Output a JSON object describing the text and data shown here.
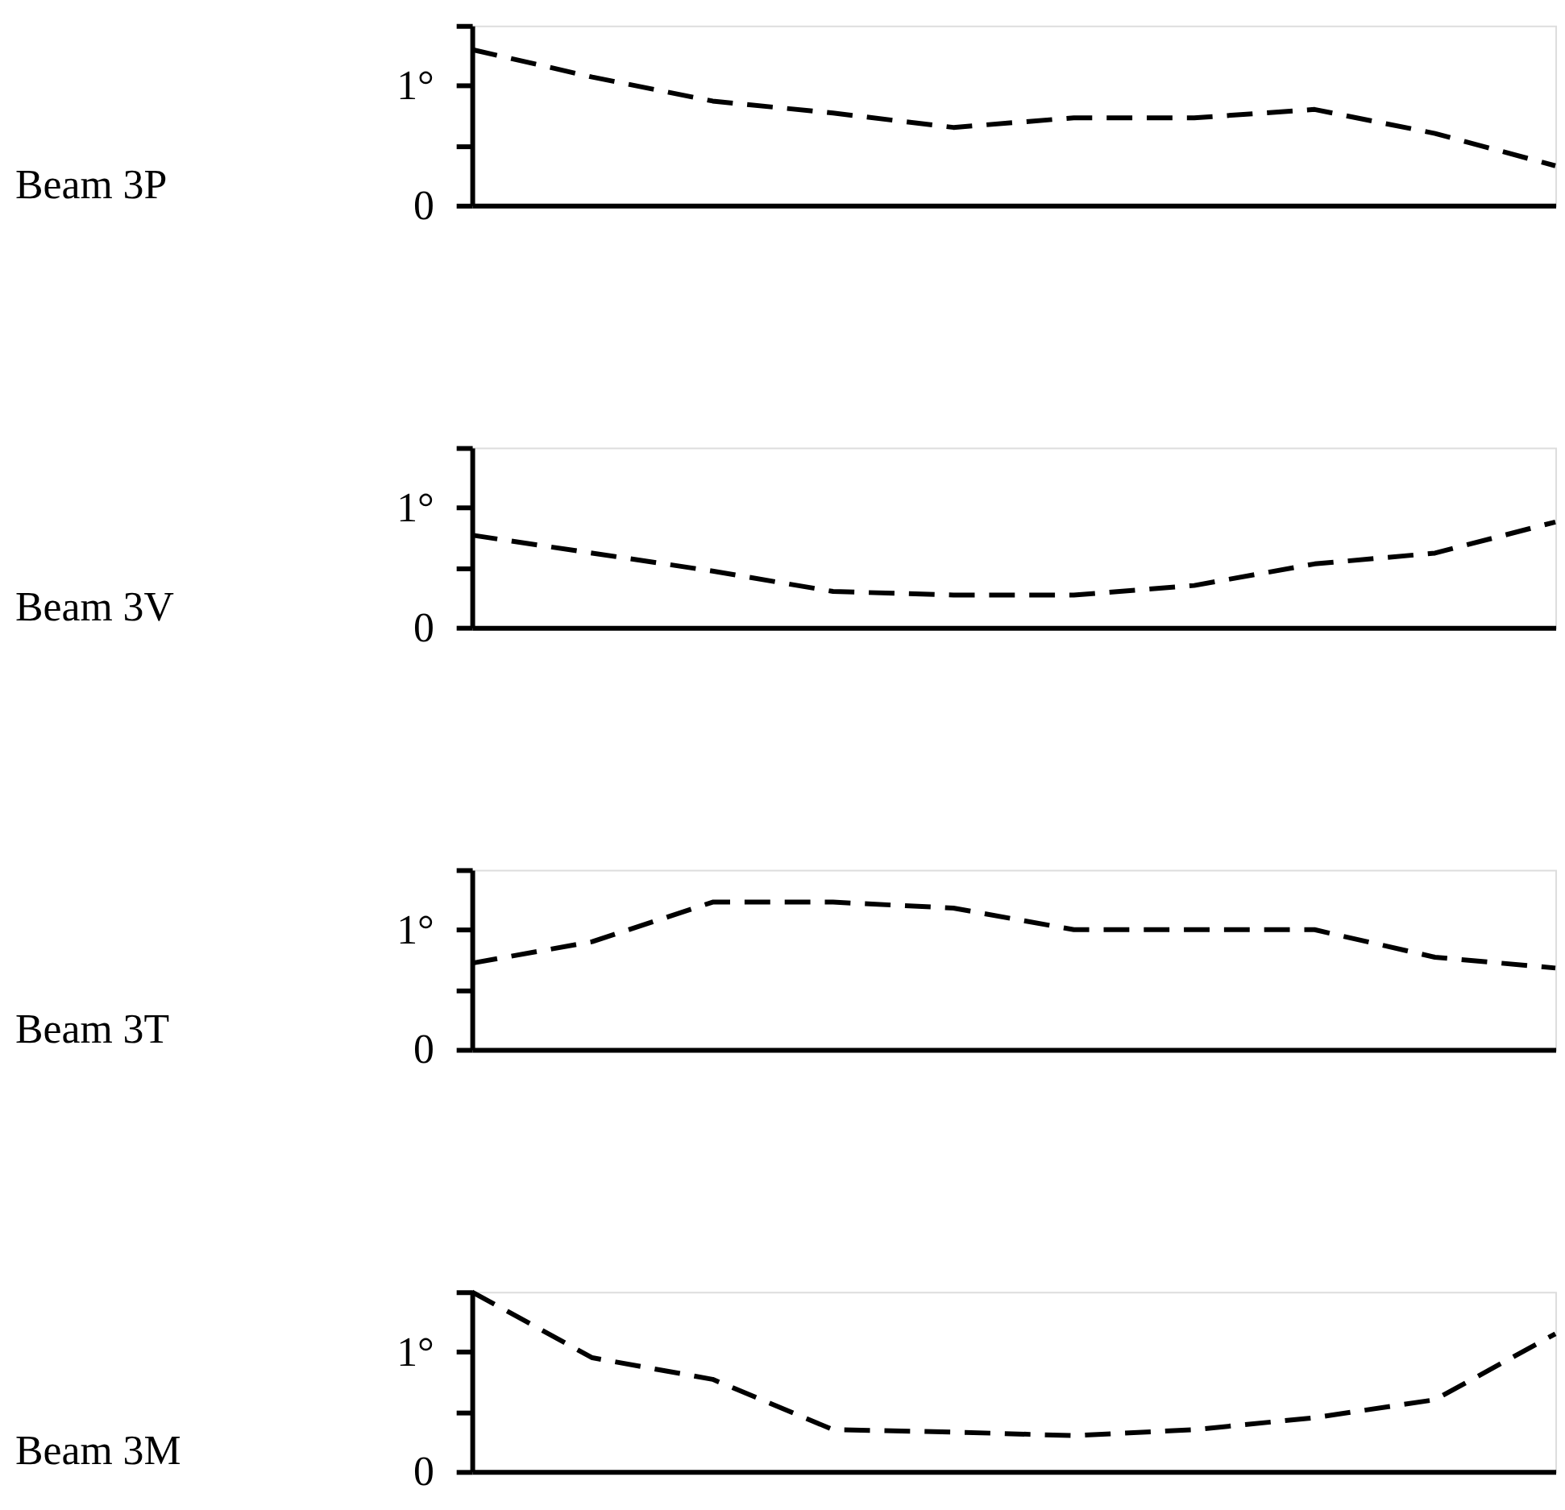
{
  "chart_data": [
    {
      "type": "line",
      "ylabel": "Beam 3P",
      "categories": [
        null,
        null,
        null,
        null,
        null,
        null,
        null,
        null,
        null,
        null
      ],
      "values": [
        1.3,
        1.07,
        0.87,
        0.77,
        0.65,
        0.73,
        0.73,
        0.8,
        0.6,
        0.33
      ],
      "color": "#000000",
      "line_style": "dashed",
      "ylim": [
        0,
        1.5
      ],
      "yticks": [
        0,
        {
          "value": 0.5,
          "label": null
        },
        {
          "value": 1,
          "label": "1°"
        },
        {
          "value": 1.5,
          "label": null
        }
      ],
      "tick_labels": "y",
      "grid": false
    },
    {
      "type": "line",
      "ylabel": "Beam 3V",
      "categories": [
        null,
        null,
        null,
        null,
        null,
        null,
        null,
        null,
        null,
        null
      ],
      "values": [
        0.77,
        0.62,
        0.47,
        0.3,
        0.27,
        0.27,
        0.35,
        0.53,
        0.62,
        0.88
      ],
      "color": "#000000",
      "line_style": "dashed",
      "ylim": [
        0,
        1.5
      ],
      "yticks": [
        0,
        {
          "value": 0.5,
          "label": null
        },
        {
          "value": 1,
          "label": "1°"
        },
        {
          "value": 1.5,
          "label": null
        }
      ],
      "tick_labels": "y",
      "grid": false
    },
    {
      "type": "line",
      "ylabel": "Beam 3T",
      "categories": [
        null,
        null,
        null,
        null,
        null,
        null,
        null,
        null,
        null,
        null
      ],
      "values": [
        0.72,
        0.9,
        1.23,
        1.23,
        1.18,
        1.0,
        1.0,
        1.0,
        0.77,
        0.68
      ],
      "color": "#000000",
      "line_style": "dashed",
      "ylim": [
        0,
        1.5
      ],
      "yticks": [
        0,
        {
          "value": 0.5,
          "label": null
        },
        {
          "value": 1,
          "label": "1°"
        },
        {
          "value": 1.5,
          "label": null
        }
      ],
      "tick_labels": "y",
      "grid": false
    },
    {
      "type": "line",
      "ylabel": "Beam 3M",
      "categories": [
        null,
        null,
        null,
        null,
        null,
        null,
        null,
        null,
        null,
        null
      ],
      "values": [
        1.5,
        0.95,
        0.77,
        0.35,
        0.33,
        0.3,
        0.35,
        0.45,
        0.6,
        1.15
      ],
      "color": "#000000",
      "line_style": "dashed",
      "ylim": [
        0,
        1.5
      ],
      "yticks": [
        0,
        {
          "value": 0.5,
          "label": null
        },
        {
          "value": 1,
          "label": "1°"
        },
        {
          "value": 1.5,
          "label": null
        }
      ],
      "tick_labels": "y",
      "grid": false
    }
  ]
}
